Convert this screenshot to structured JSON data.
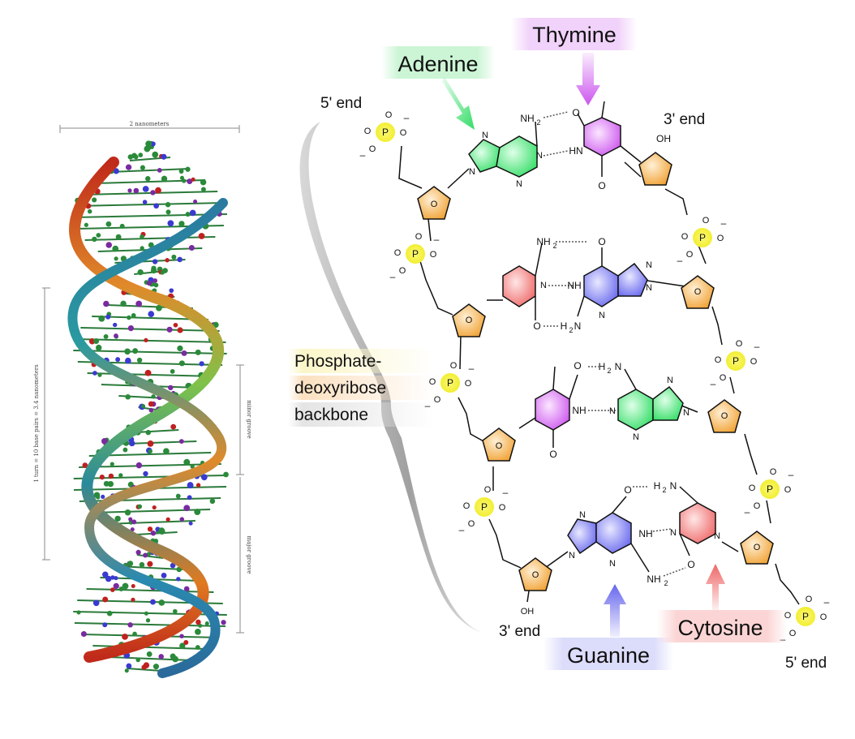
{
  "helix": {
    "width_label": "2 nanometers",
    "turn_label": "1 turn = 10 base pairs = 3.4 nanometers",
    "minor_groove": "minor groove",
    "major_groove": "major groove"
  },
  "bases": {
    "adenine": "Adenine",
    "thymine": "Thymine",
    "guanine": "Guanine",
    "cytosine": "Cytosine"
  },
  "ends": {
    "five_prime_top": "5' end",
    "three_prime_top": "3' end",
    "three_prime_bottom": "3' end",
    "five_prime_bottom": "5' end"
  },
  "backbone": {
    "line1": "Phosphate-",
    "line2": "deoxyribose",
    "line3": "backbone"
  },
  "colors": {
    "adenine": "#33dd66",
    "thymine": "#cc55ee",
    "guanine": "#6666ee",
    "cytosine": "#ee6666",
    "sugar": "#f0a030",
    "phosphate": "#f2ee30"
  },
  "atoms": {
    "nh2": "NH",
    "h2": "H",
    "sub2": "2",
    "nh": "NH",
    "hn": "HN",
    "n": "N",
    "o": "O",
    "oh": "OH",
    "p": "P",
    "minus": "–"
  }
}
